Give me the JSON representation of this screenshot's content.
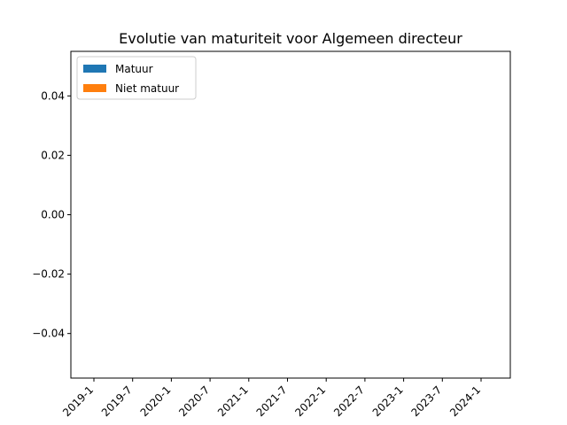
{
  "chart_data": {
    "type": "bar",
    "title": "Evolutie van maturiteit voor Algemeen directeur",
    "xlabel": "",
    "ylabel": "",
    "categories": [
      "2019-1",
      "2019-7",
      "2020-1",
      "2020-7",
      "2021-1",
      "2021-7",
      "2022-1",
      "2022-7",
      "2023-1",
      "2023-7",
      "2024-1"
    ],
    "series": [
      {
        "name": "Matuur",
        "values": [
          0,
          0,
          0,
          0,
          0,
          0,
          0,
          0,
          0,
          0,
          0
        ],
        "color": "#1f77b4"
      },
      {
        "name": "Niet matuur",
        "values": [
          0,
          0,
          0,
          0,
          0,
          0,
          0,
          0,
          0,
          0,
          0
        ],
        "color": "#ff7f0e"
      }
    ],
    "stacked": true,
    "ylim": [
      -0.055,
      0.055
    ],
    "yticks": [
      "0.04",
      "0.02",
      "0.00",
      "−0.02",
      "−0.04"
    ],
    "ytick_values": [
      0.04,
      0.02,
      0.0,
      -0.02,
      -0.04
    ],
    "grid": false,
    "legend_position": "top-left"
  }
}
